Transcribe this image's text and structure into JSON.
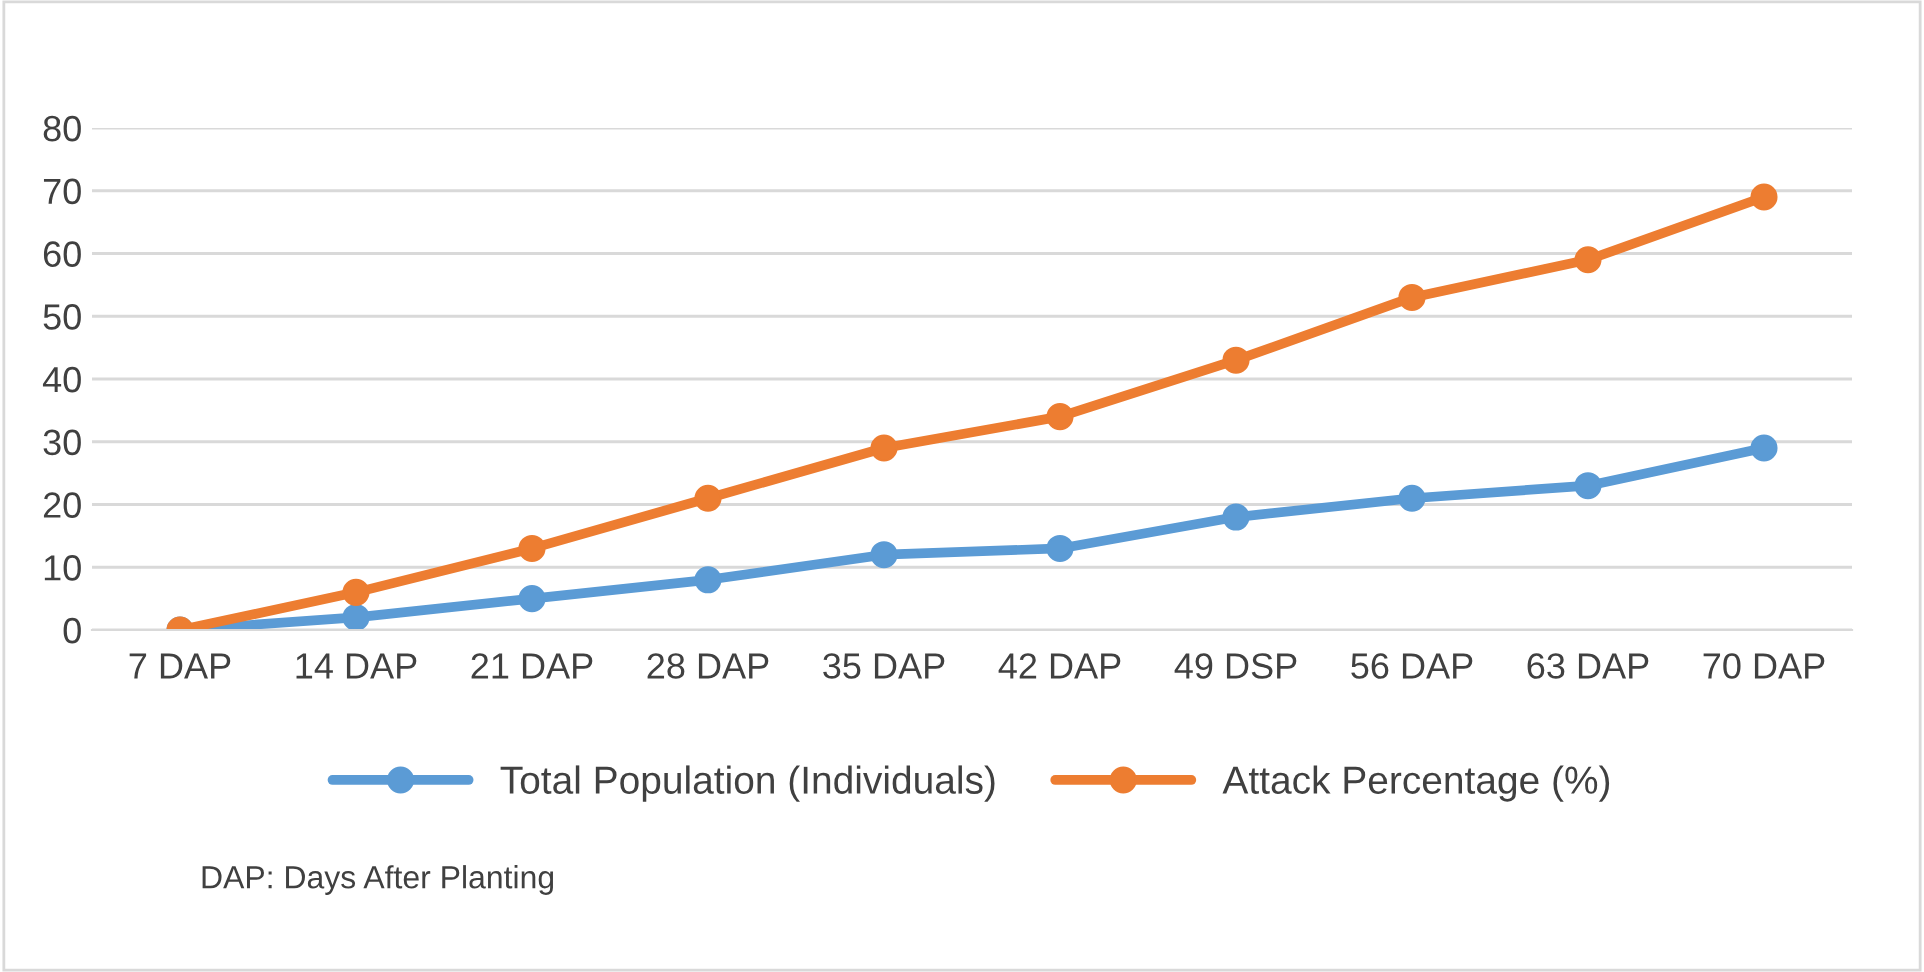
{
  "chart_data": {
    "type": "line",
    "categories": [
      "7 DAP",
      "14 DAP",
      "21 DAP",
      "28 DAP",
      "35 DAP",
      "42 DAP",
      "49 DSP",
      "56 DAP",
      "63 DAP",
      "70 DAP"
    ],
    "series": [
      {
        "name": "Total Population (Individuals)",
        "color": "#5b9bd5",
        "values": [
          0,
          2,
          5,
          8,
          12,
          13,
          18,
          21,
          23,
          29
        ]
      },
      {
        "name": "Attack Percentage (%)",
        "color": "#ed7d31",
        "values": [
          0,
          6,
          13,
          21,
          29,
          34,
          43,
          53,
          59,
          69
        ]
      }
    ],
    "ylim": [
      0,
      80
    ],
    "yticks": [
      0,
      10,
      20,
      30,
      40,
      50,
      60,
      70,
      80
    ],
    "grid": "y",
    "legend": "bottom",
    "marker": "circle",
    "line_style": "solid",
    "annotations": [
      "DAP: Days After Planting"
    ]
  }
}
